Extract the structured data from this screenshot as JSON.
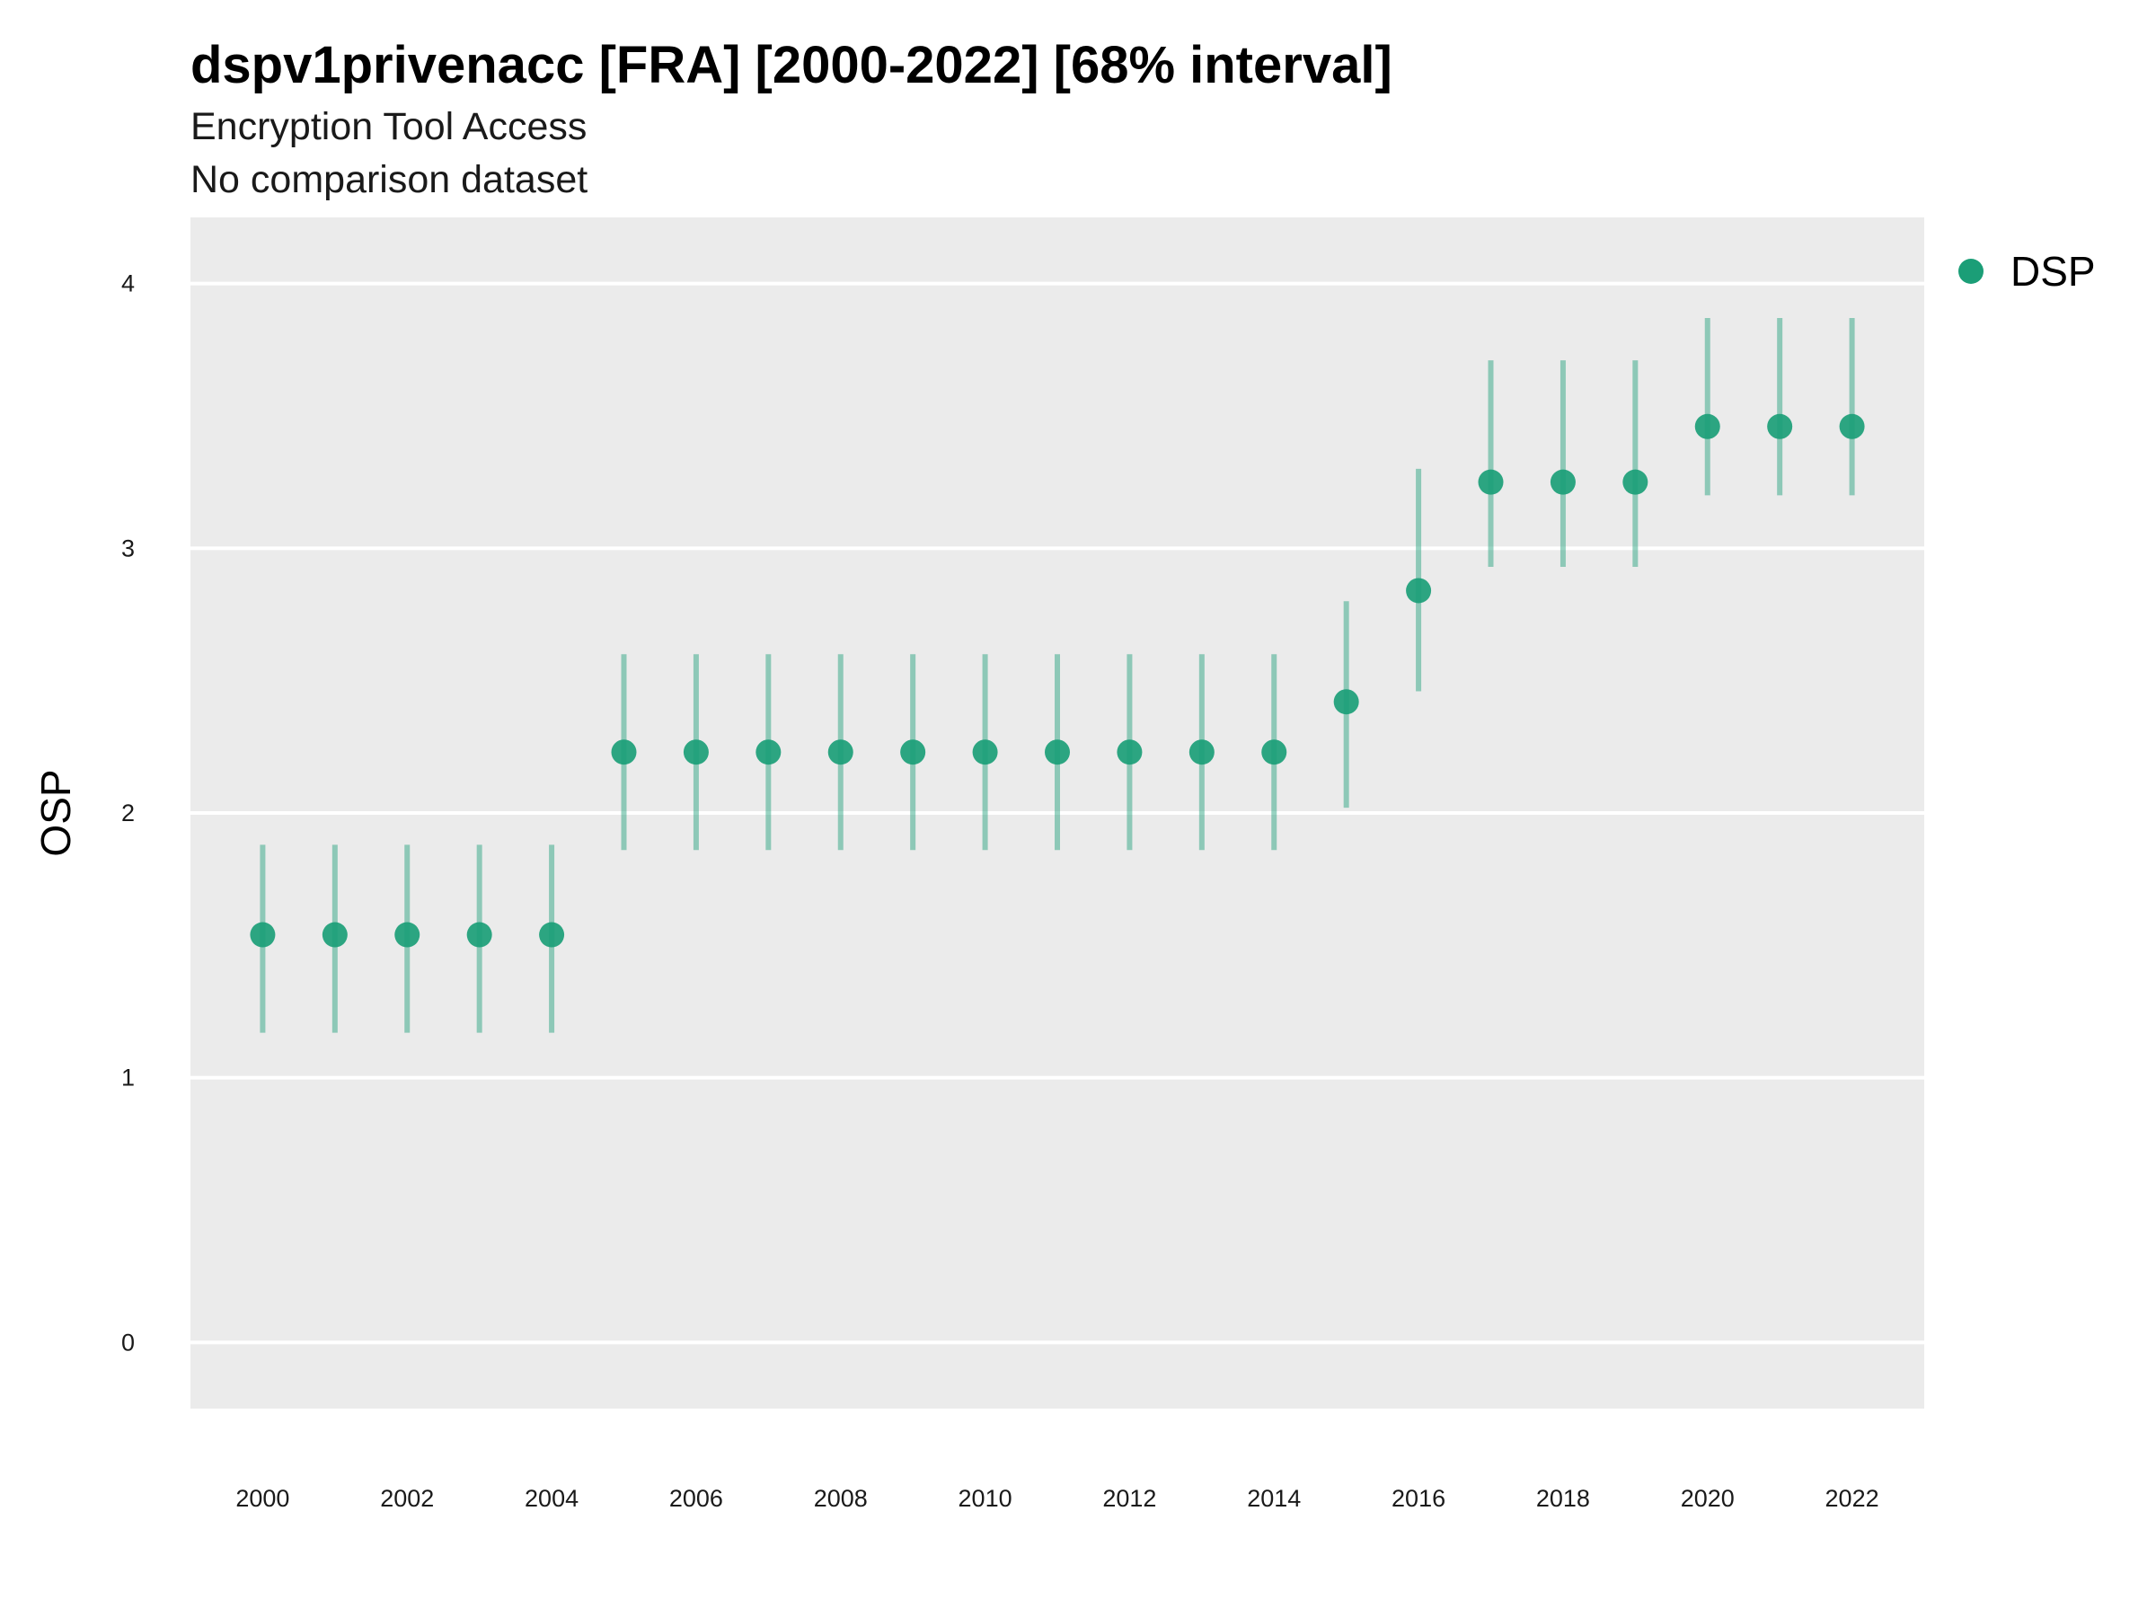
{
  "chart_data": {
    "type": "scatter",
    "title": "dspv1privenacc [FRA] [2000-2022] [68% interval]",
    "subtitle": "Encryption Tool Access",
    "subtitle2": "No comparison dataset",
    "xlabel": "",
    "ylabel": "OSP",
    "ylim": [
      -0.25,
      4.25
    ],
    "xlim": [
      1999.0,
      2023.0
    ],
    "y_ticks": [
      0,
      1,
      2,
      3,
      4
    ],
    "x_ticks": [
      2000,
      2002,
      2004,
      2006,
      2008,
      2010,
      2012,
      2014,
      2016,
      2018,
      2020,
      2022
    ],
    "grid": true,
    "legend_position": "right",
    "series": [
      {
        "name": "DSP",
        "color": "#1b9e77",
        "x": [
          2000,
          2001,
          2002,
          2003,
          2004,
          2005,
          2006,
          2007,
          2008,
          2009,
          2010,
          2011,
          2012,
          2013,
          2014,
          2015,
          2016,
          2017,
          2018,
          2019,
          2020,
          2021,
          2022
        ],
        "y": [
          1.54,
          1.54,
          1.54,
          1.54,
          1.54,
          2.23,
          2.23,
          2.23,
          2.23,
          2.23,
          2.23,
          2.23,
          2.23,
          2.23,
          2.23,
          2.42,
          2.84,
          3.25,
          3.25,
          3.25,
          3.46,
          3.46,
          3.46
        ],
        "lower": [
          1.17,
          1.17,
          1.17,
          1.17,
          1.17,
          1.86,
          1.86,
          1.86,
          1.86,
          1.86,
          1.86,
          1.86,
          1.86,
          1.86,
          1.86,
          2.02,
          2.46,
          2.93,
          2.93,
          2.93,
          3.2,
          3.2,
          3.2
        ],
        "upper": [
          1.88,
          1.88,
          1.88,
          1.88,
          1.88,
          2.6,
          2.6,
          2.6,
          2.6,
          2.6,
          2.6,
          2.6,
          2.6,
          2.6,
          2.6,
          2.8,
          3.3,
          3.71,
          3.71,
          3.71,
          3.87,
          3.87,
          3.87
        ]
      }
    ]
  }
}
